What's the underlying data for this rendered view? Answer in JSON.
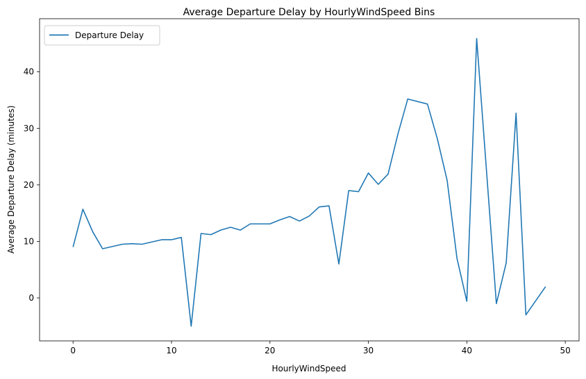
{
  "chart_data": {
    "type": "line",
    "title": "Average Departure Delay by HourlyWindSpeed Bins",
    "xlabel": "HourlyWindSpeed",
    "ylabel": "Average Departure Delay (minutes)",
    "xlim": [
      -3.4,
      51.4
    ],
    "ylim": [
      -7.6,
      49.4
    ],
    "xticks": [
      0,
      10,
      20,
      30,
      40,
      50
    ],
    "yticks": [
      0,
      10,
      20,
      30,
      40
    ],
    "grid": false,
    "legend_position": "upper-left",
    "series": [
      {
        "name": "Departure Delay",
        "color": "#1f77b4",
        "x": [
          0,
          1,
          2,
          3,
          4,
          5,
          6,
          7,
          8,
          9,
          10,
          11,
          12,
          13,
          14,
          15,
          16,
          17,
          18,
          19,
          20,
          21,
          22,
          23,
          24,
          25,
          26,
          27,
          28,
          29,
          30,
          31,
          32,
          33,
          34,
          36,
          37,
          38,
          39,
          40,
          41,
          43,
          44,
          45,
          46,
          48
        ],
        "y": [
          9.0,
          15.7,
          11.7,
          8.7,
          9.1,
          9.5,
          9.6,
          9.5,
          9.9,
          10.3,
          10.3,
          10.7,
          -5.0,
          11.4,
          11.2,
          12.0,
          12.5,
          12.0,
          13.1,
          13.1,
          13.1,
          13.8,
          14.4,
          13.6,
          14.5,
          16.1,
          16.3,
          6.0,
          19.0,
          18.8,
          22.1,
          20.1,
          21.9,
          29.0,
          35.2,
          34.3,
          28.2,
          20.8,
          7.0,
          -0.6,
          45.9,
          -1.0,
          6.2,
          32.7,
          -3.0,
          2.0
        ]
      }
    ]
  }
}
